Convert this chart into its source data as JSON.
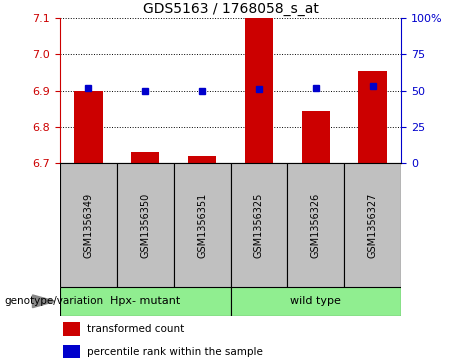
{
  "title": "GDS5163 / 1768058_s_at",
  "samples": [
    "GSM1356349",
    "GSM1356350",
    "GSM1356351",
    "GSM1356325",
    "GSM1356326",
    "GSM1356327"
  ],
  "red_values": [
    6.9,
    6.73,
    6.72,
    7.1,
    6.845,
    6.955
  ],
  "blue_values": [
    52,
    50,
    50,
    51,
    52,
    53
  ],
  "ylim_left": [
    6.7,
    7.1
  ],
  "ylim_right": [
    0,
    100
  ],
  "yticks_left": [
    6.7,
    6.8,
    6.9,
    7.0,
    7.1
  ],
  "yticks_right": [
    0,
    25,
    50,
    75,
    100
  ],
  "bar_color": "#cc0000",
  "dot_color": "#0000cc",
  "sample_box_color": "#c0c0c0",
  "group1_label": "Hpx- mutant",
  "group2_label": "wild type",
  "group_color": "#90EE90",
  "legend_red": "transformed count",
  "legend_blue": "percentile rank within the sample",
  "genotype_label": "genotype/variation"
}
